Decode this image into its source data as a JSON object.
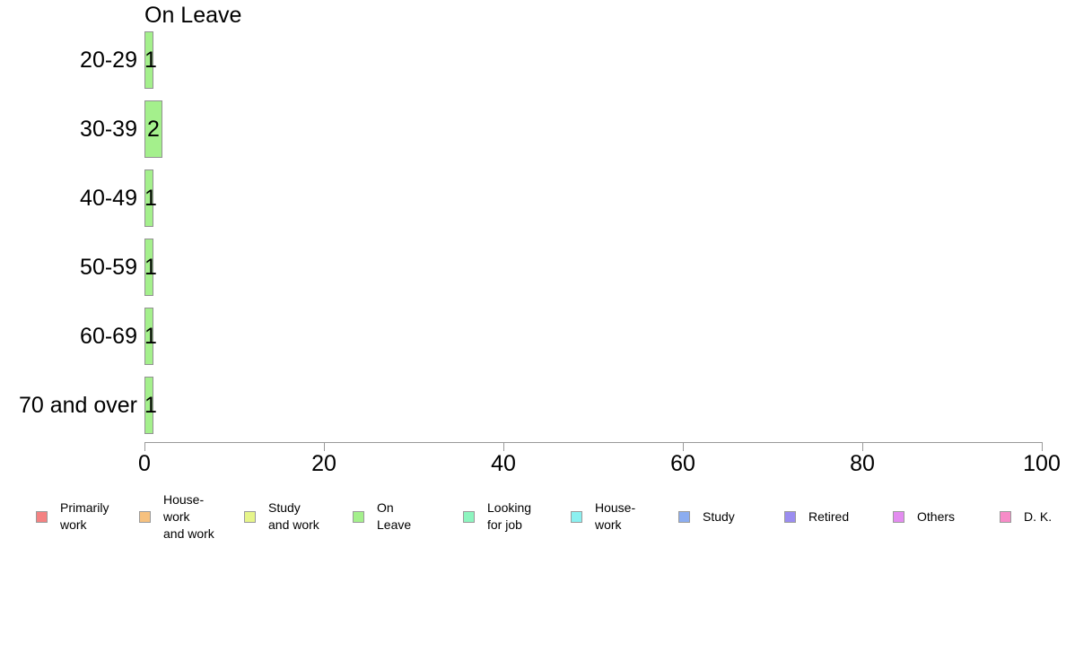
{
  "chart_data": {
    "type": "bar",
    "orientation": "horizontal",
    "title": "On Leave",
    "categories": [
      "20-29",
      "30-39",
      "40-49",
      "50-59",
      "60-69",
      "70 and over"
    ],
    "values": [
      1,
      2,
      1,
      1,
      1,
      1
    ],
    "value_labels": [
      "1",
      "2",
      "1",
      "1",
      "1",
      "1"
    ],
    "xlabel": "",
    "ylabel": "",
    "xlim": [
      0,
      100
    ],
    "x_ticks": [
      "0",
      "20",
      "40",
      "60",
      "80",
      "100"
    ],
    "grid": false,
    "legend_position": "bottom",
    "bar_color": "#A4F08C",
    "bar_border_color": "#919191",
    "axis_color": "#999999",
    "text_color": "#000000",
    "background_color": "#FFFFFF",
    "legend": [
      {
        "label": "Primarily work",
        "lines": [
          "Primarily",
          "work"
        ],
        "color": "#F48282"
      },
      {
        "label": "House-work and work",
        "lines": [
          "House-",
          "work",
          "and work"
        ],
        "color": "#F6C17F"
      },
      {
        "label": "Study and work",
        "lines": [
          "Study",
          "and work"
        ],
        "color": "#E6F58A"
      },
      {
        "label": "On Leave",
        "lines": [
          "On",
          "Leave"
        ],
        "color": "#A4F08C"
      },
      {
        "label": "Looking for job",
        "lines": [
          "Looking",
          "for job"
        ],
        "color": "#8DF5BF"
      },
      {
        "label": "House-work",
        "lines": [
          "House-",
          "work"
        ],
        "color": "#8BF0F0"
      },
      {
        "label": "Study",
        "lines": [
          "Study"
        ],
        "color": "#8CADF0"
      },
      {
        "label": "Retired",
        "lines": [
          "Retired"
        ],
        "color": "#9B8DF0"
      },
      {
        "label": "Others",
        "lines": [
          "Others"
        ],
        "color": "#E38CF0"
      },
      {
        "label": "D. K.",
        "lines": [
          "D. K."
        ],
        "color": "#F78CC8"
      }
    ]
  }
}
